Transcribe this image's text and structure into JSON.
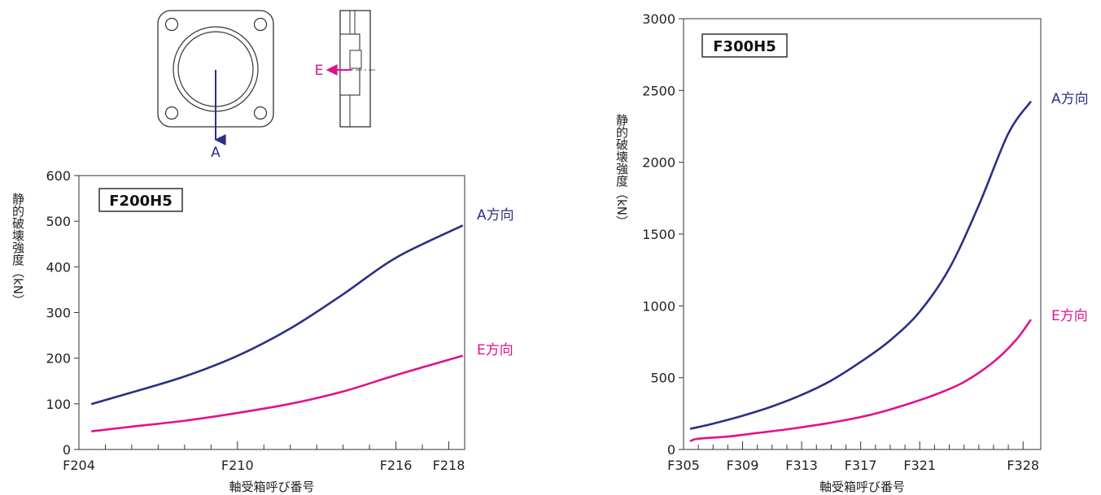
{
  "diagram": {
    "label_a": "A",
    "label_e": "E"
  },
  "colors": {
    "a_series": "#2b2f86",
    "e_series": "#e0128c",
    "axis": "#333333",
    "text": "#222222"
  },
  "chart_data": [
    {
      "type": "line",
      "title": "F200H5",
      "xlabel": "軸受箱呼び番号",
      "ylabel": "静的破壊強度（kN）",
      "ylim": [
        0,
        600
      ],
      "yticks": [
        0,
        100,
        200,
        300,
        400,
        500,
        600
      ],
      "x_tick_labels": [
        "F204",
        "F210",
        "F216",
        "F218"
      ],
      "x_tick_positions": [
        204,
        210,
        216,
        218
      ],
      "xlim": [
        204,
        218.6
      ],
      "minor_x_ticks": [
        205,
        206,
        207,
        208,
        209,
        211,
        212,
        213,
        214,
        215,
        217
      ],
      "series": [
        {
          "name": "A方向",
          "x": [
            204.5,
            206,
            208,
            210,
            212,
            214,
            216,
            218.5
          ],
          "values": [
            100,
            125,
            160,
            205,
            265,
            340,
            420,
            490
          ]
        },
        {
          "name": "E方向",
          "x": [
            204.5,
            206,
            208,
            210,
            212,
            214,
            216,
            218.5
          ],
          "values": [
            40,
            50,
            63,
            80,
            100,
            127,
            163,
            205
          ]
        }
      ]
    },
    {
      "type": "line",
      "title": "F300H5",
      "xlabel": "軸受箱呼び番号",
      "ylabel": "静的破壊強度（kN）",
      "ylim": [
        0,
        3000
      ],
      "yticks": [
        0,
        500,
        1000,
        1500,
        2000,
        2500,
        3000
      ],
      "x_tick_labels": [
        "F305",
        "F309",
        "F313",
        "F317",
        "F321",
        "F328"
      ],
      "x_tick_positions": [
        305,
        309,
        313,
        317,
        321,
        328
      ],
      "xlim": [
        305,
        329.2
      ],
      "minor_x_ticks": [
        306,
        307,
        308,
        310,
        311,
        312,
        314,
        315,
        316,
        318,
        319,
        320,
        322,
        323,
        324,
        325,
        326,
        327
      ],
      "series": [
        {
          "name": "A方向",
          "x": [
            305.5,
            307,
            309,
            311,
            313,
            315,
            317,
            319,
            321,
            323,
            325,
            327,
            328.5
          ],
          "values": [
            145,
            180,
            235,
            300,
            380,
            480,
            610,
            760,
            960,
            1260,
            1700,
            2200,
            2420
          ]
        },
        {
          "name": "E方向",
          "x": [
            305.5,
            306,
            308,
            310,
            312,
            314,
            316,
            318,
            320,
            322,
            324,
            326,
            327.5,
            328.5
          ],
          "values": [
            60,
            75,
            90,
            115,
            140,
            170,
            205,
            250,
            310,
            380,
            470,
            610,
            760,
            900
          ]
        }
      ]
    }
  ]
}
